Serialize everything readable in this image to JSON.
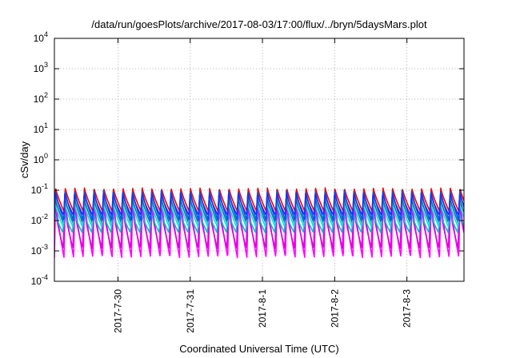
{
  "chart_data": {
    "type": "line",
    "title": "/data/run/goesPlots/archive/2017-08-03/17:00/flux/../bryn/5daysMars.plot",
    "xlabel": "Coordinated Universal Time (UTC)",
    "ylabel": "cSv/day",
    "y_scale": "log",
    "ylim": [
      0.0001,
      10000
    ],
    "y_ticks": [
      {
        "value": 0.0001,
        "base": "10",
        "exp": "-4"
      },
      {
        "value": 0.001,
        "base": "10",
        "exp": "-3"
      },
      {
        "value": 0.01,
        "base": "10",
        "exp": "-2"
      },
      {
        "value": 0.1,
        "base": "10",
        "exp": "-1"
      },
      {
        "value": 1,
        "base": "10",
        "exp": "0"
      },
      {
        "value": 10,
        "base": "10",
        "exp": "1"
      },
      {
        "value": 100,
        "base": "10",
        "exp": "2"
      },
      {
        "value": 1000,
        "base": "10",
        "exp": "3"
      },
      {
        "value": 10000,
        "base": "10",
        "exp": "4"
      }
    ],
    "x_unit": "days since 2017-07-29 00:00 UTC",
    "xlim": [
      0.12,
      5.79
    ],
    "x_ticks": [
      {
        "value": 1,
        "label": "2017-7-30"
      },
      {
        "value": 2,
        "label": "2017-7-31"
      },
      {
        "value": 3,
        "label": "2017-8-1"
      },
      {
        "value": 4,
        "label": "2017-8-2"
      },
      {
        "value": 5,
        "label": "2017-8-3"
      }
    ],
    "grid": true,
    "period_days": 0.1333,
    "series": [
      {
        "color": "#ff00ff",
        "peak": 0.05,
        "trough": 0.0006,
        "phase": 0.0
      },
      {
        "color": "#e000e0",
        "peak": 0.03,
        "trough": 0.0012,
        "phase": 0.01
      },
      {
        "color": "#ff0000",
        "peak": 0.12,
        "trough": 0.02,
        "phase": 0.0
      },
      {
        "color": "#00c0c0",
        "peak": 0.02,
        "trough": 0.004,
        "phase": 0.015
      },
      {
        "color": "#008080",
        "peak": 0.06,
        "trough": 0.008,
        "phase": 0.005
      },
      {
        "color": "#00e0e0",
        "peak": 0.04,
        "trough": 0.006,
        "phase": 0.008
      },
      {
        "color": "#0050ff",
        "peak": 0.1,
        "trough": 0.01,
        "phase": 0.002
      },
      {
        "color": "#1a30ff",
        "peak": 0.08,
        "trough": 0.015,
        "phase": 0.004
      }
    ]
  }
}
